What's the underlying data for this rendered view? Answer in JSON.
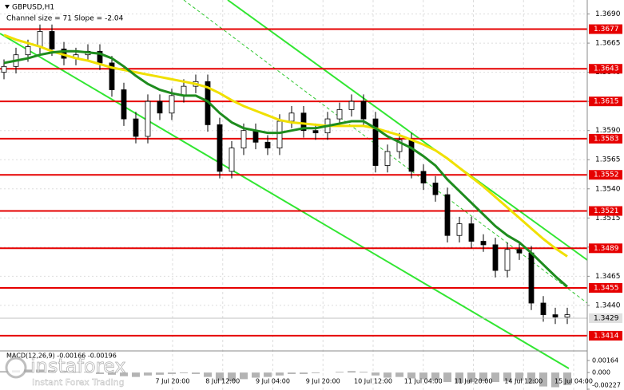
{
  "chart_data": {
    "type": "candlestick",
    "title": "GBPUSD,H1",
    "subtitle": "Channel size = 71 Slope = -2.04",
    "open": [
      1.364,
      1.3645,
      1.3655,
      1.3662,
      1.3675,
      1.366,
      1.3652,
      1.3655,
      1.3658,
      1.3648,
      1.3625,
      1.36,
      1.3585,
      1.3615,
      1.3605,
      1.362,
      1.3628,
      1.3632,
      1.3595,
      1.3555,
      1.3575,
      1.359,
      1.358,
      1.3575,
      1.3598,
      1.3605,
      1.359,
      1.3588,
      1.36,
      1.3608,
      1.3615,
      1.36,
      1.356,
      1.3572,
      1.3582,
      1.3555,
      1.3545,
      1.3535,
      1.35,
      1.351,
      1.3495,
      1.3492,
      1.347,
      1.3488,
      1.3485,
      1.3442,
      1.3432,
      1.343
    ],
    "high": [
      1.3651,
      1.3661,
      1.3668,
      1.3681,
      1.3681,
      1.3666,
      1.3661,
      1.3664,
      1.3664,
      1.3654,
      1.3631,
      1.3606,
      1.3621,
      1.3621,
      1.3626,
      1.3634,
      1.3638,
      1.3638,
      1.3601,
      1.3581,
      1.3596,
      1.3596,
      1.3586,
      1.3604,
      1.3611,
      1.3611,
      1.3596,
      1.3606,
      1.3614,
      1.3621,
      1.3621,
      1.3606,
      1.3578,
      1.3588,
      1.3588,
      1.3561,
      1.3551,
      1.3541,
      1.3516,
      1.3516,
      1.3501,
      1.3498,
      1.3494,
      1.3494,
      1.3491,
      1.3448,
      1.3438,
      1.3438
    ],
    "low": [
      1.3634,
      1.3639,
      1.3649,
      1.3656,
      1.3654,
      1.3646,
      1.3646,
      1.3649,
      1.3642,
      1.3619,
      1.3594,
      1.3579,
      1.3579,
      1.3599,
      1.3599,
      1.3614,
      1.3622,
      1.3589,
      1.3549,
      1.3549,
      1.3569,
      1.3574,
      1.3569,
      1.3569,
      1.3592,
      1.3584,
      1.3582,
      1.3582,
      1.3594,
      1.3602,
      1.3594,
      1.3554,
      1.3554,
      1.3566,
      1.3549,
      1.3539,
      1.3529,
      1.3494,
      1.3494,
      1.3489,
      1.3486,
      1.3464,
      1.3464,
      1.3479,
      1.3436,
      1.3426,
      1.3424,
      1.3424
    ],
    "close": [
      1.3645,
      1.3655,
      1.3662,
      1.3675,
      1.366,
      1.3652,
      1.3655,
      1.3658,
      1.3648,
      1.3625,
      1.36,
      1.3585,
      1.3615,
      1.3605,
      1.362,
      1.3628,
      1.3632,
      1.3595,
      1.3555,
      1.3575,
      1.359,
      1.358,
      1.3575,
      1.3598,
      1.3605,
      1.359,
      1.3588,
      1.36,
      1.3608,
      1.3615,
      1.36,
      1.356,
      1.3572,
      1.3582,
      1.3555,
      1.3545,
      1.3535,
      1.35,
      1.351,
      1.3495,
      1.3492,
      1.347,
      1.3488,
      1.3485,
      1.3442,
      1.3432,
      1.343,
      1.3432
    ],
    "series": [
      {
        "color": "#f0e000",
        "values": [
          1.3672,
          1.3668,
          1.3665,
          1.3662,
          1.3658,
          1.3655,
          1.3652,
          1.365,
          1.3647,
          1.3644,
          1.3642,
          1.364,
          1.3638,
          1.3636,
          1.3634,
          1.3632,
          1.363,
          1.3627,
          1.3622,
          1.3616,
          1.3611,
          1.3607,
          1.3603,
          1.3599,
          1.3597,
          1.3596,
          1.3595,
          1.3594,
          1.3594,
          1.3594,
          1.3594,
          1.3592,
          1.3589,
          1.3586,
          1.3582,
          1.3578,
          1.3573,
          1.3566,
          1.3558,
          1.355,
          1.3542,
          1.3533,
          1.3524,
          1.3515,
          1.3506,
          1.3497,
          1.3489,
          1.3482
        ]
      },
      {
        "color": "#1e8c1e",
        "values": [
          1.3648,
          1.365,
          1.3652,
          1.3655,
          1.3657,
          1.3658,
          1.3658,
          1.3657,
          1.3656,
          1.3652,
          1.3645,
          1.3637,
          1.363,
          1.3625,
          1.3622,
          1.362,
          1.362,
          1.3615,
          1.3605,
          1.3597,
          1.3592,
          1.359,
          1.3588,
          1.3588,
          1.359,
          1.3592,
          1.3592,
          1.3594,
          1.3596,
          1.3598,
          1.3598,
          1.3592,
          1.3585,
          1.358,
          1.3575,
          1.3568,
          1.356,
          1.3548,
          1.3538,
          1.3528,
          1.3518,
          1.3508,
          1.35,
          1.3494,
          1.3485,
          1.3475,
          1.3465,
          1.3456
        ]
      }
    ],
    "ylim": [
      1.3702,
      1.3403
    ],
    "yticks": [
      {
        "value": 1.369,
        "label": "1.3690"
      },
      1.3665,
      {
        "value": 1.364,
        "label": "1.3640"
      },
      1.3615,
      {
        "value": 1.359,
        "label": "1.3590"
      },
      1.3565,
      {
        "value": 1.354,
        "label": "1.3540"
      },
      1.3515,
      {
        "value": 1.349,
        "label": "1.3490"
      },
      1.3465,
      {
        "value": 1.344,
        "label": "1.3440"
      }
    ],
    "levels": [
      1.3677,
      1.3643,
      1.3615,
      1.3583,
      1.3552,
      1.3521,
      1.3489,
      1.3455,
      1.3414
    ],
    "current_price": 1.3429,
    "xlabels": [
      "7 Jul 20:00",
      "8 Jul 12:00",
      "9 Jul 04:00",
      "9 Jul 20:00",
      "10 Jul 12:00",
      "11 Jul 04:00",
      "11 Jul 20:00",
      "14 Jul 12:00",
      "15 Jul 04:00"
    ],
    "grid": true,
    "macd": {
      "label": "MACD(12,26,9) -0.00166 -0.00196",
      "values": [
        0.0002,
        0.0003,
        0.0004,
        0.0004,
        0.0003,
        0.0002,
        0.0001,
        0.0001,
        -0.0002,
        -0.0003,
        -0.0005,
        -0.0006,
        -0.0004,
        -0.0003,
        -0.0002,
        -0.0001,
        -0.0002,
        -0.0006,
        -0.0011,
        -0.0012,
        -0.0009,
        -0.0007,
        -0.0006,
        -0.0004,
        -0.0002,
        -0.0002,
        -0.0001,
        0.0,
        0.0001,
        0.0002,
        0.0001,
        -0.0004,
        -0.0007,
        -0.0006,
        -0.0008,
        -0.0009,
        -0.001,
        -0.0013,
        -0.0014,
        -0.0013,
        -0.0012,
        -0.0013,
        -0.0012,
        -0.0011,
        -0.0015,
        -0.0019,
        -0.002,
        -0.0017
      ],
      "color": "#b4b4b4",
      "ylim": [
        0.00164,
        -0.00227
      ],
      "yticks": [
        0.00164,
        {
          "value": 0,
          "label": "0.000"
        },
        -0.00227
      ]
    },
    "watermark": {
      "brand": "instaforex",
      "tagline": "Instant Forex Trading"
    }
  }
}
